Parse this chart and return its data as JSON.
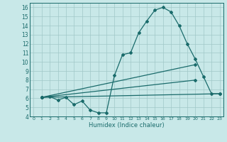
{
  "bg_color": "#c8e8e8",
  "line_color": "#1a6b6b",
  "grid_color": "#a0c8c8",
  "xlabel": "Humidex (Indice chaleur)",
  "xlim": [
    -0.5,
    23.5
  ],
  "ylim": [
    4,
    16.5
  ],
  "yticks": [
    4,
    5,
    6,
    7,
    8,
    9,
    10,
    11,
    12,
    13,
    14,
    15,
    16
  ],
  "xticks": [
    0,
    1,
    2,
    3,
    4,
    5,
    6,
    7,
    8,
    9,
    10,
    11,
    12,
    13,
    14,
    15,
    16,
    17,
    18,
    19,
    20,
    21,
    22,
    23
  ],
  "curve1_x": [
    1,
    2,
    3,
    4,
    5,
    6,
    7,
    8,
    9,
    10,
    11,
    12,
    13,
    14,
    15,
    16,
    17,
    18,
    19,
    20,
    21,
    22,
    23
  ],
  "curve1_y": [
    6.1,
    6.2,
    5.8,
    6.1,
    5.3,
    5.7,
    4.7,
    4.4,
    4.4,
    8.5,
    10.8,
    11.0,
    13.2,
    14.5,
    15.7,
    16.0,
    15.5,
    14.0,
    12.0,
    10.3,
    8.4,
    6.5,
    6.5
  ],
  "line2_x": [
    1,
    20
  ],
  "line2_y": [
    6.1,
    9.7
  ],
  "line3_x": [
    1,
    20
  ],
  "line3_y": [
    6.1,
    8.0
  ],
  "line4_x": [
    1,
    23
  ],
  "line4_y": [
    6.1,
    6.5
  ],
  "figsize": [
    3.2,
    2.0
  ],
  "dpi": 100
}
